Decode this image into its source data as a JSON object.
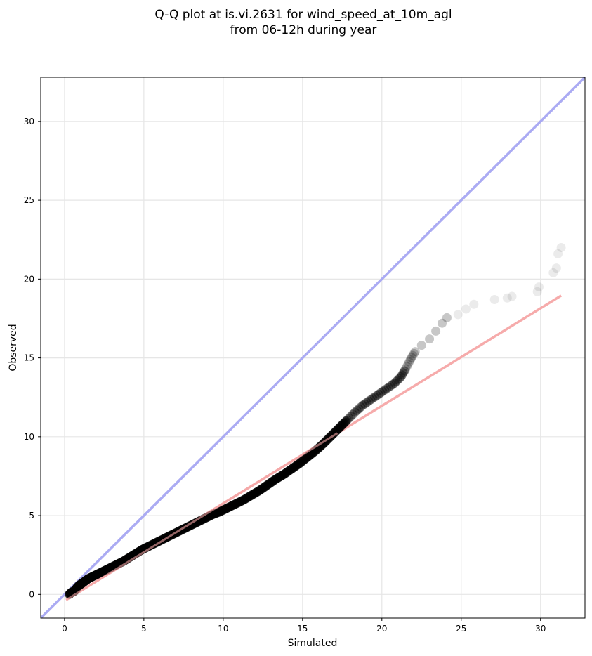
{
  "chart_data": {
    "type": "scatter",
    "title_lines": [
      "Q-Q plot at is.vi.2631 for wind_speed_at_10m_agl",
      "from 06-12h during year"
    ],
    "xlabel": "Simulated",
    "ylabel": "Observed",
    "xlim": [
      -1.5,
      32.8
    ],
    "ylim": [
      -1.5,
      32.8
    ],
    "x_ticks": [
      0,
      5,
      10,
      15,
      20,
      25,
      30
    ],
    "y_ticks": [
      0,
      5,
      10,
      15,
      20,
      25,
      30
    ],
    "grid": true,
    "legend": "none",
    "reference_line": {
      "name": "1:1 line",
      "color": "#a6a6f2",
      "from": [
        -1.5,
        -1.5
      ],
      "to": [
        32.8,
        32.8
      ]
    },
    "fit_line": {
      "name": "fit",
      "color": "#f5a6a6",
      "from": [
        0.1,
        -0.35
      ],
      "to": [
        31.3,
        18.95
      ]
    },
    "scatter_color": "#000000",
    "points": [
      [
        0.3,
        0.0
      ],
      [
        0.45,
        0.15
      ],
      [
        0.6,
        0.2
      ],
      [
        0.7,
        0.3
      ],
      [
        0.8,
        0.45
      ],
      [
        0.95,
        0.6
      ],
      [
        1.1,
        0.7
      ],
      [
        1.3,
        0.85
      ],
      [
        1.5,
        1.0
      ],
      [
        1.8,
        1.15
      ],
      [
        2.1,
        1.3
      ],
      [
        2.5,
        1.5
      ],
      [
        2.9,
        1.7
      ],
      [
        3.3,
        1.9
      ],
      [
        3.7,
        2.1
      ],
      [
        4.1,
        2.35
      ],
      [
        4.5,
        2.6
      ],
      [
        4.9,
        2.85
      ],
      [
        5.3,
        3.05
      ],
      [
        5.8,
        3.3
      ],
      [
        6.3,
        3.55
      ],
      [
        6.8,
        3.8
      ],
      [
        7.3,
        4.05
      ],
      [
        7.8,
        4.3
      ],
      [
        8.3,
        4.55
      ],
      [
        8.8,
        4.8
      ],
      [
        9.3,
        5.05
      ],
      [
        9.8,
        5.25
      ],
      [
        10.3,
        5.5
      ],
      [
        10.8,
        5.75
      ],
      [
        11.3,
        6.0
      ],
      [
        11.8,
        6.3
      ],
      [
        12.3,
        6.6
      ],
      [
        12.8,
        6.95
      ],
      [
        13.3,
        7.3
      ],
      [
        13.8,
        7.6
      ],
      [
        14.3,
        7.95
      ],
      [
        14.8,
        8.3
      ],
      [
        15.3,
        8.7
      ],
      [
        15.8,
        9.1
      ],
      [
        16.3,
        9.55
      ],
      [
        16.8,
        10.05
      ],
      [
        17.3,
        10.55
      ],
      [
        17.8,
        11.05
      ],
      [
        18.3,
        11.55
      ],
      [
        18.8,
        12.0
      ],
      [
        19.3,
        12.35
      ],
      [
        19.8,
        12.7
      ],
      [
        20.3,
        13.05
      ],
      [
        20.8,
        13.4
      ],
      [
        21.2,
        13.8
      ],
      [
        21.5,
        14.3
      ],
      [
        21.8,
        14.9
      ],
      [
        22.1,
        15.4
      ],
      [
        22.5,
        15.8
      ],
      [
        23.0,
        16.2
      ],
      [
        23.4,
        16.7
      ],
      [
        23.8,
        17.2
      ],
      [
        24.1,
        17.55
      ],
      [
        24.8,
        17.75
      ],
      [
        25.3,
        18.1
      ],
      [
        25.8,
        18.4
      ],
      [
        27.1,
        18.7
      ],
      [
        27.9,
        18.8
      ],
      [
        28.2,
        18.9
      ],
      [
        29.8,
        19.2
      ],
      [
        29.9,
        19.5
      ],
      [
        30.8,
        20.4
      ],
      [
        31.0,
        20.7
      ],
      [
        31.1,
        21.6
      ],
      [
        31.3,
        22.0
      ]
    ]
  }
}
